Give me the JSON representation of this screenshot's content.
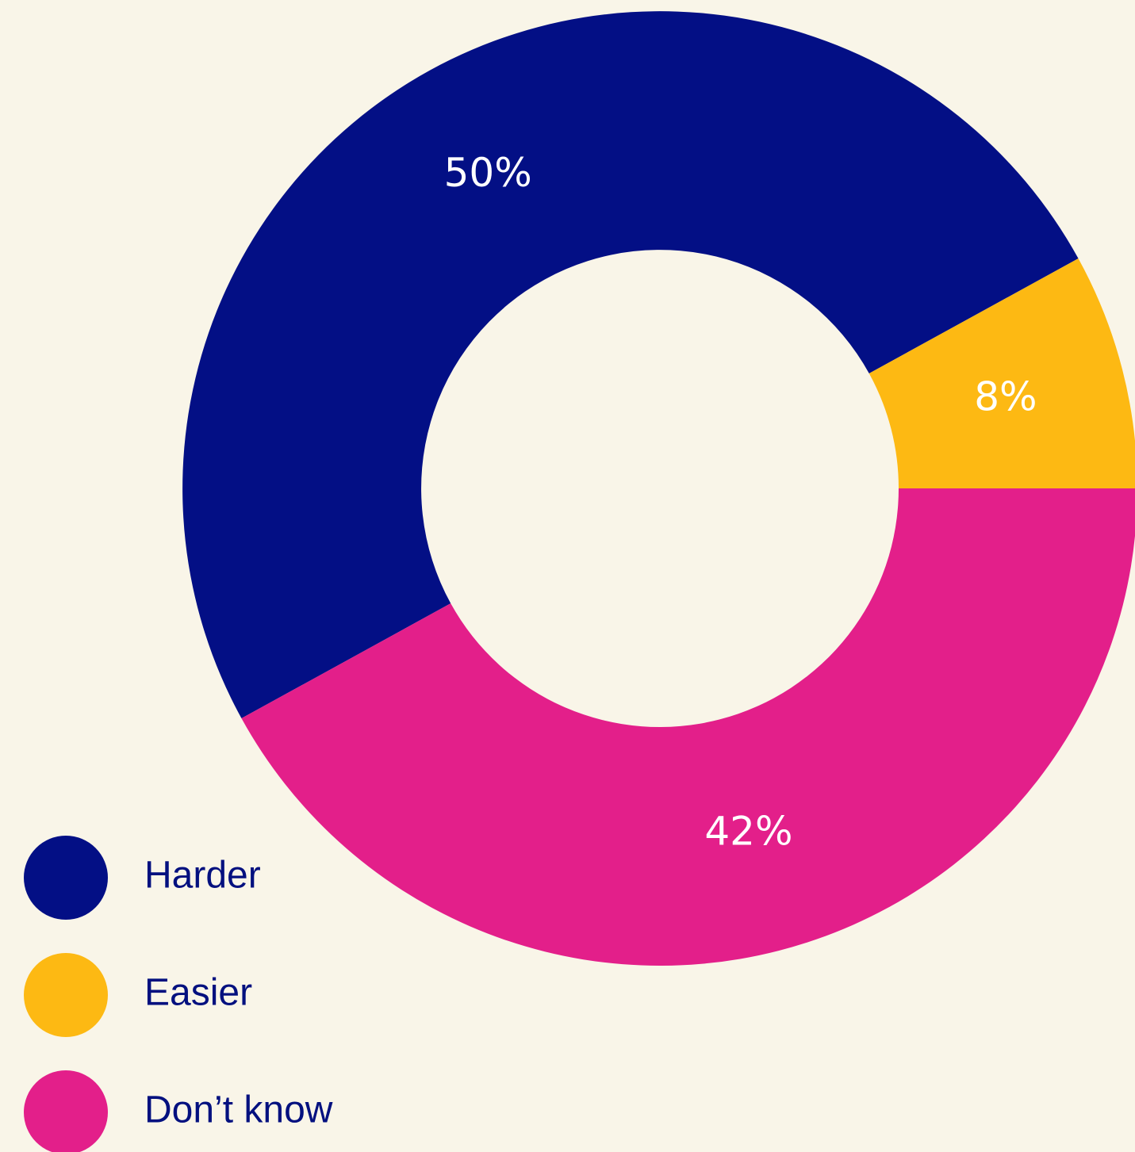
{
  "chart_data": {
    "type": "donut",
    "categories": [
      "Harder",
      "Easier",
      "Don’t know"
    ],
    "values": [
      50,
      8,
      42
    ],
    "value_labels": [
      "50%",
      "8%",
      "42%"
    ],
    "colors": [
      "#030f85",
      "#fdb913",
      "#e31f8a"
    ]
  }
}
